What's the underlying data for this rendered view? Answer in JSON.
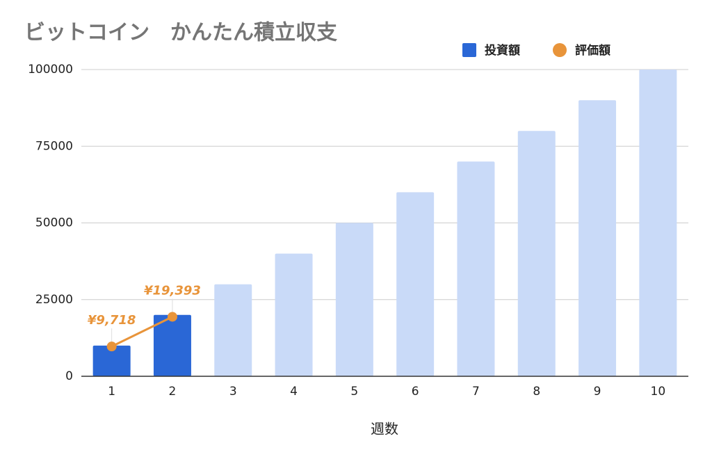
{
  "chart_data": {
    "type": "bar",
    "title": "ビットコイン　かんたん積立収支",
    "x_label": "週数",
    "categories": [
      "1",
      "2",
      "3",
      "4",
      "5",
      "6",
      "7",
      "8",
      "9",
      "10"
    ],
    "series": [
      {
        "name": "投資額",
        "type": "bar",
        "color": "#2a67d6",
        "colors": [
          "#2a67d6",
          "#2a67d6",
          "#c9daf8",
          "#c9daf8",
          "#c9daf8",
          "#c9daf8",
          "#c9daf8",
          "#c9daf8",
          "#c9daf8",
          "#c9daf8"
        ],
        "values": [
          10000,
          20000,
          30000,
          40000,
          50000,
          60000,
          70000,
          80000,
          90000,
          100000
        ]
      },
      {
        "name": "評価額",
        "type": "line",
        "color": "#e8943a",
        "values": [
          9718,
          19393,
          null,
          null,
          null,
          null,
          null,
          null,
          null,
          null
        ],
        "value_labels": [
          "¥9,718",
          "¥19,393",
          null,
          null,
          null,
          null,
          null,
          null,
          null,
          null
        ]
      }
    ],
    "ylim": [
      0,
      100000
    ],
    "yticks": [
      0,
      25000,
      50000,
      75000,
      100000
    ],
    "grid": true,
    "legend": "top-right"
  }
}
